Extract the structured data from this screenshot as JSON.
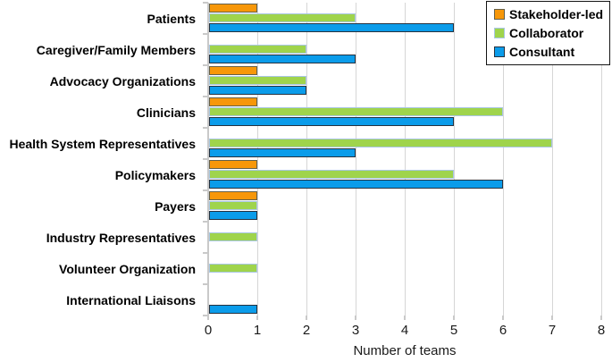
{
  "chart_data": {
    "type": "bar",
    "orientation": "horizontal",
    "title": "",
    "xlabel": "Number of teams",
    "xlim": [
      0,
      8
    ],
    "xticks": [
      0,
      1,
      2,
      3,
      4,
      5,
      6,
      7,
      8
    ],
    "grid": true,
    "legend_position": "top-right",
    "categories": [
      "Patients",
      "Caregiver/Family Members",
      "Advocacy Organizations",
      "Clinicians",
      "Health System Representatives",
      "Policymakers",
      "Payers",
      "Industry Representatives",
      "Volunteer Organization",
      "International Liaisons"
    ],
    "series": [
      {
        "name": "Stakeholder-led",
        "color": "#F79709",
        "border_color": "#63604B",
        "values": [
          1,
          0,
          1,
          1,
          0,
          1,
          1,
          0,
          0,
          0
        ]
      },
      {
        "name": "Collaborator",
        "color": "#9FD44C",
        "border_color": "#A9C6E3",
        "values": [
          3,
          2,
          2,
          6,
          7,
          5,
          1,
          1,
          1,
          0
        ]
      },
      {
        "name": "Consultant",
        "color": "#0B9CEA",
        "border_color": "#26323F",
        "values": [
          5,
          3,
          2,
          5,
          3,
          6,
          1,
          0,
          0,
          1
        ]
      }
    ]
  },
  "colors": {
    "grid": "#D6D6D6",
    "axis": "#C9C9C9",
    "background": "#FFFFFF",
    "legend_border": "#141414",
    "text": "#000000"
  }
}
